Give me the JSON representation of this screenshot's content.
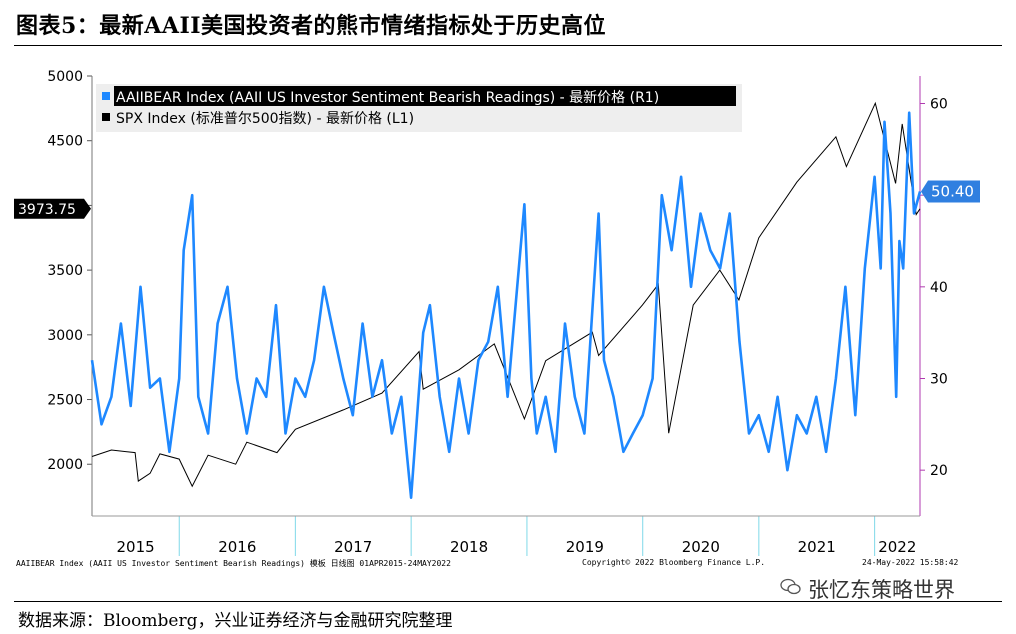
{
  "title": "图表5：最新AAII美国投资者的熊市情绪指标处于历史高位",
  "source": "数据来源：Bloomberg，兴业证券经济与金融研究院整理",
  "watermark": "张忆东策略世界",
  "footer": {
    "left": "AAIIBEAR Index (AAII US Investor Sentiment Bearish Readings) 模板  日线图 01APR2015-24MAY2022",
    "mid": "Copyright© 2022 Bloomberg Finance L.P.",
    "right": "24-May-2022 15:58:42"
  },
  "colors": {
    "bear": "#1e88ff",
    "spx": "#000000",
    "right_axis": "#b03ab0",
    "badge_bear_bg": "#2f7fe0",
    "badge_spx_bg": "#000000"
  },
  "chart_data": {
    "type": "line",
    "x_range": [
      "2015-04-01",
      "2022-05-24"
    ],
    "x_tick_labels": [
      "2015",
      "2016",
      "2017",
      "2018",
      "2019",
      "2020",
      "2021",
      "2022"
    ],
    "legend": [
      "AAIIBEAR Index (AAII US Investor Sentiment Bearish Readings) - 最新价格 (R1)",
      "SPX Index (标准普尔500指数) - 最新价格 (L1)"
    ],
    "left_axis": {
      "ylim": [
        1600,
        5000
      ],
      "ticks": [
        2000,
        2500,
        3000,
        3500,
        4000,
        4500,
        5000
      ]
    },
    "right_axis": {
      "ylim": [
        15,
        63
      ],
      "ticks": [
        20,
        30,
        40,
        50,
        60
      ]
    },
    "last_value_labels": {
      "spx": "3973.75",
      "bear": "50.40"
    },
    "series": [
      {
        "name": "SPX Index (标准普尔500指数) - 最新价格 (L1)",
        "axis": "left",
        "points": [
          [
            "2015-04-01",
            2060
          ],
          [
            "2015-06-01",
            2110
          ],
          [
            "2015-08-15",
            2090
          ],
          [
            "2015-08-25",
            1870
          ],
          [
            "2015-10-01",
            1930
          ],
          [
            "2015-11-01",
            2080
          ],
          [
            "2016-01-01",
            2040
          ],
          [
            "2016-02-11",
            1830
          ],
          [
            "2016-04-01",
            2070
          ],
          [
            "2016-06-27",
            2000
          ],
          [
            "2016-08-01",
            2170
          ],
          [
            "2016-11-04",
            2090
          ],
          [
            "2017-01-01",
            2270
          ],
          [
            "2017-06-01",
            2420
          ],
          [
            "2017-10-01",
            2550
          ],
          [
            "2018-01-26",
            2870
          ],
          [
            "2018-02-08",
            2580
          ],
          [
            "2018-06-01",
            2730
          ],
          [
            "2018-09-20",
            2930
          ],
          [
            "2018-12-24",
            2350
          ],
          [
            "2019-03-01",
            2800
          ],
          [
            "2019-07-26",
            3020
          ],
          [
            "2019-08-15",
            2840
          ],
          [
            "2019-12-31",
            3230
          ],
          [
            "2020-02-19",
            3390
          ],
          [
            "2020-03-23",
            2240
          ],
          [
            "2020-06-08",
            3230
          ],
          [
            "2020-08-31",
            3500
          ],
          [
            "2020-10-30",
            3270
          ],
          [
            "2021-01-01",
            3750
          ],
          [
            "2021-05-01",
            4180
          ],
          [
            "2021-09-01",
            4530
          ],
          [
            "2021-10-04",
            4300
          ],
          [
            "2022-01-03",
            4790
          ],
          [
            "2022-03-08",
            4170
          ],
          [
            "2022-03-29",
            4630
          ],
          [
            "2022-05-12",
            3930
          ],
          [
            "2022-05-24",
            3973.75
          ]
        ]
      },
      {
        "name": "AAIIBEAR Index (AAII US Investor Sentiment Bearish Readings) - 最新价格 (R1)",
        "axis": "right",
        "points": [
          [
            "2015-04-01",
            32
          ],
          [
            "2015-05-01",
            25
          ],
          [
            "2015-06-01",
            28
          ],
          [
            "2015-07-01",
            36
          ],
          [
            "2015-08-01",
            27
          ],
          [
            "2015-09-01",
            40
          ],
          [
            "2015-10-01",
            29
          ],
          [
            "2015-11-01",
            30
          ],
          [
            "2015-12-01",
            22
          ],
          [
            "2016-01-01",
            30
          ],
          [
            "2016-01-15",
            44
          ],
          [
            "2016-02-11",
            50
          ],
          [
            "2016-03-01",
            28
          ],
          [
            "2016-04-01",
            24
          ],
          [
            "2016-05-01",
            36
          ],
          [
            "2016-06-01",
            40
          ],
          [
            "2016-07-01",
            30
          ],
          [
            "2016-08-01",
            24
          ],
          [
            "2016-09-01",
            30
          ],
          [
            "2016-10-01",
            28
          ],
          [
            "2016-11-01",
            38
          ],
          [
            "2016-12-01",
            24
          ],
          [
            "2017-01-01",
            30
          ],
          [
            "2017-02-01",
            28
          ],
          [
            "2017-03-01",
            32
          ],
          [
            "2017-04-01",
            40
          ],
          [
            "2017-05-01",
            35
          ],
          [
            "2017-06-01",
            30
          ],
          [
            "2017-07-01",
            26
          ],
          [
            "2017-08-01",
            36
          ],
          [
            "2017-09-01",
            28
          ],
          [
            "2017-10-01",
            32
          ],
          [
            "2017-11-01",
            24
          ],
          [
            "2017-12-01",
            28
          ],
          [
            "2018-01-01",
            17
          ],
          [
            "2018-02-08",
            35
          ],
          [
            "2018-03-01",
            38
          ],
          [
            "2018-04-01",
            28
          ],
          [
            "2018-05-01",
            22
          ],
          [
            "2018-06-01",
            30
          ],
          [
            "2018-07-01",
            24
          ],
          [
            "2018-08-01",
            32
          ],
          [
            "2018-09-01",
            34
          ],
          [
            "2018-10-01",
            40
          ],
          [
            "2018-11-01",
            28
          ],
          [
            "2018-12-24",
            49
          ],
          [
            "2019-01-15",
            30
          ],
          [
            "2019-02-01",
            24
          ],
          [
            "2019-03-01",
            28
          ],
          [
            "2019-04-01",
            22
          ],
          [
            "2019-05-01",
            36
          ],
          [
            "2019-06-01",
            28
          ],
          [
            "2019-07-01",
            24
          ],
          [
            "2019-08-15",
            48
          ],
          [
            "2019-09-01",
            32
          ],
          [
            "2019-10-01",
            28
          ],
          [
            "2019-11-01",
            22
          ],
          [
            "2019-12-01",
            24
          ],
          [
            "2020-01-01",
            26
          ],
          [
            "2020-02-01",
            30
          ],
          [
            "2020-03-01",
            50
          ],
          [
            "2020-04-01",
            44
          ],
          [
            "2020-05-01",
            52
          ],
          [
            "2020-06-01",
            40
          ],
          [
            "2020-07-01",
            48
          ],
          [
            "2020-08-01",
            44
          ],
          [
            "2020-09-01",
            42
          ],
          [
            "2020-10-01",
            48
          ],
          [
            "2020-11-01",
            34
          ],
          [
            "2020-12-01",
            24
          ],
          [
            "2021-01-01",
            26
          ],
          [
            "2021-02-01",
            22
          ],
          [
            "2021-03-01",
            28
          ],
          [
            "2021-04-01",
            20
          ],
          [
            "2021-05-01",
            26
          ],
          [
            "2021-06-01",
            24
          ],
          [
            "2021-07-01",
            28
          ],
          [
            "2021-08-01",
            22
          ],
          [
            "2021-09-01",
            30
          ],
          [
            "2021-10-01",
            40
          ],
          [
            "2021-11-01",
            26
          ],
          [
            "2021-12-01",
            42
          ],
          [
            "2022-01-01",
            52
          ],
          [
            "2022-01-20",
            42
          ],
          [
            "2022-02-01",
            58
          ],
          [
            "2022-02-20",
            48
          ],
          [
            "2022-03-10",
            28
          ],
          [
            "2022-03-20",
            45
          ],
          [
            "2022-04-01",
            42
          ],
          [
            "2022-04-20",
            59
          ],
          [
            "2022-05-05",
            48
          ],
          [
            "2022-05-24",
            50.4
          ]
        ]
      }
    ]
  }
}
